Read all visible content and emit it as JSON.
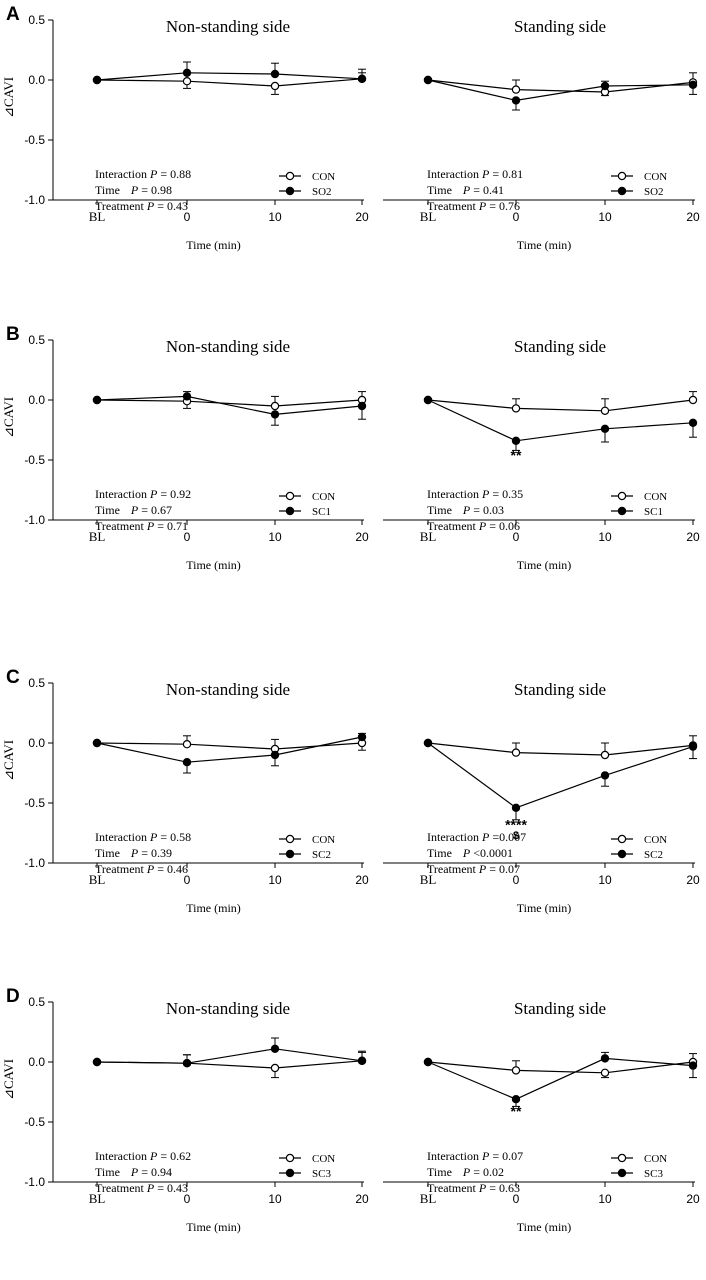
{
  "colors": {
    "ink": "#000000",
    "open_fill": "#ffffff"
  },
  "ylabel": "⊿CAVI",
  "chart_data": [
    {
      "panel_label": "A",
      "type": "line",
      "ylabel": "⊿CAVI",
      "ylim": [
        -1.0,
        0.5
      ],
      "yticks": [
        "0.5",
        "0.0",
        "-0.5",
        "-1.0"
      ],
      "ytick_values": [
        0.5,
        0.0,
        -0.5,
        -1.0
      ],
      "x_categories": [
        "BL",
        "0",
        "10",
        "20"
      ],
      "subplots": [
        {
          "title": "Non-standing side",
          "xlabel": "Time (min)",
          "stats": [
            {
              "label": "Interaction",
              "p": "P",
              "value": "= 0.88"
            },
            {
              "label": "Time",
              "p": "P",
              "value": "= 0.98"
            },
            {
              "label": "Treatment",
              "p": "P",
              "value": "= 0.43"
            }
          ],
          "annotations": [],
          "series": [
            {
              "name": "CON",
              "marker": "open",
              "values": [
                0.0,
                -0.01,
                -0.05,
                0.01
              ],
              "err": [
                0,
                0.06,
                0.07,
                0.05
              ]
            },
            {
              "name": "SO2",
              "marker": "filled",
              "values": [
                0.0,
                0.06,
                0.05,
                0.01
              ],
              "err": [
                0,
                0.09,
                0.09,
                0.08
              ]
            }
          ]
        },
        {
          "title": "Standing side",
          "xlabel": "Time (min)",
          "stats": [
            {
              "label": "Interaction",
              "p": "P",
              "value": "= 0.81"
            },
            {
              "label": "Time",
              "p": "P",
              "value": "= 0.41"
            },
            {
              "label": "Treatment",
              "p": "P",
              "value": "= 0.76"
            }
          ],
          "annotations": [],
          "series": [
            {
              "name": "CON",
              "marker": "open",
              "values": [
                0.0,
                -0.08,
                -0.1,
                -0.02
              ],
              "err": [
                0,
                0.08,
                0.03,
                0.08
              ]
            },
            {
              "name": "SO2",
              "marker": "filled",
              "values": [
                0.0,
                -0.17,
                -0.05,
                -0.04
              ],
              "err": [
                0,
                0.08,
                0.04,
                0.08
              ]
            }
          ]
        }
      ]
    },
    {
      "panel_label": "B",
      "type": "line",
      "ylabel": "⊿CAVI",
      "ylim": [
        -1.0,
        0.5
      ],
      "yticks": [
        "0.5",
        "0.0",
        "-0.5",
        "-1.0"
      ],
      "ytick_values": [
        0.5,
        0.0,
        -0.5,
        -1.0
      ],
      "x_categories": [
        "BL",
        "0",
        "10",
        "20"
      ],
      "subplots": [
        {
          "title": "Non-standing side",
          "xlabel": "Time (min)",
          "stats": [
            {
              "label": "Interaction",
              "p": "P",
              "value": "= 0.92"
            },
            {
              "label": "Time",
              "p": "P",
              "value": "= 0.67"
            },
            {
              "label": "Treatment",
              "p": "P",
              "value": "= 0.71"
            }
          ],
          "annotations": [],
          "series": [
            {
              "name": "CON",
              "marker": "open",
              "values": [
                0.0,
                -0.01,
                -0.05,
                0.0
              ],
              "err": [
                0,
                0.06,
                0.08,
                0.07
              ]
            },
            {
              "name": "SC1",
              "marker": "filled",
              "values": [
                0.0,
                0.03,
                -0.12,
                -0.05
              ],
              "err": [
                0,
                0.04,
                0.09,
                0.11
              ]
            }
          ]
        },
        {
          "title": "Standing side",
          "xlabel": "Time (min)",
          "stats": [
            {
              "label": "Interaction",
              "p": "P",
              "value": "= 0.35"
            },
            {
              "label": "Time",
              "p": "P",
              "value": "= 0.03"
            },
            {
              "label": "Treatment",
              "p": "P",
              "value": "= 0.06"
            }
          ],
          "annotations": [
            {
              "text": "**",
              "x": 1,
              "y": -0.5
            }
          ],
          "series": [
            {
              "name": "CON",
              "marker": "open",
              "values": [
                0.0,
                -0.07,
                -0.09,
                0.0
              ],
              "err": [
                0,
                0.08,
                0.1,
                0.07
              ]
            },
            {
              "name": "SC1",
              "marker": "filled",
              "values": [
                0.0,
                -0.34,
                -0.24,
                -0.19
              ],
              "err": [
                0,
                0.08,
                0.11,
                0.12
              ]
            }
          ]
        }
      ]
    },
    {
      "panel_label": "C",
      "type": "line",
      "ylabel": "⊿CAVI",
      "ylim": [
        -1.0,
        0.5
      ],
      "yticks": [
        "0.5",
        "0.0",
        "-0.5",
        "-1.0"
      ],
      "ytick_values": [
        0.5,
        0.0,
        -0.5,
        -1.0
      ],
      "x_categories": [
        "BL",
        "0",
        "10",
        "20"
      ],
      "subplots": [
        {
          "title": "Non-standing side",
          "xlabel": "Time (min)",
          "stats": [
            {
              "label": "Interaction",
              "p": "P",
              "value": "= 0.58"
            },
            {
              "label": "Time",
              "p": "P",
              "value": "= 0.39"
            },
            {
              "label": "Treatment",
              "p": "P",
              "value": "= 0.46"
            }
          ],
          "annotations": [],
          "series": [
            {
              "name": "CON",
              "marker": "open",
              "values": [
                0.0,
                -0.01,
                -0.05,
                0.0
              ],
              "err": [
                0,
                0.07,
                0.08,
                0.06
              ]
            },
            {
              "name": "SC2",
              "marker": "filled",
              "values": [
                0.0,
                -0.16,
                -0.1,
                0.05
              ],
              "err": [
                0,
                0.09,
                0.09,
                0.03
              ]
            }
          ]
        },
        {
          "title": "Standing side",
          "xlabel": "Time (min)",
          "stats": [
            {
              "label": "Interaction",
              "p": "P",
              "value": "=0.007"
            },
            {
              "label": "Time",
              "p": "P",
              "value": "<0.0001"
            },
            {
              "label": "Treatment",
              "p": "P",
              "value": "= 0.07"
            }
          ],
          "annotations": [
            {
              "text": "****",
              "x": 1,
              "y": -0.72
            },
            {
              "text": "$",
              "x": 1,
              "y": -0.8
            }
          ],
          "series": [
            {
              "name": "CON",
              "marker": "open",
              "values": [
                0.0,
                -0.08,
                -0.1,
                -0.02
              ],
              "err": [
                0,
                0.08,
                0.1,
                0.08
              ]
            },
            {
              "name": "SC2",
              "marker": "filled",
              "values": [
                0.0,
                -0.54,
                -0.27,
                -0.03
              ],
              "err": [
                0,
                0.1,
                0.09,
                0.1
              ]
            }
          ]
        }
      ]
    },
    {
      "panel_label": "D",
      "type": "line",
      "ylabel": "⊿CAVI",
      "ylim": [
        -1.0,
        0.5
      ],
      "yticks": [
        "0.5",
        "0.0",
        "-0.5",
        "-1.0"
      ],
      "ytick_values": [
        0.5,
        0.0,
        -0.5,
        -1.0
      ],
      "x_categories": [
        "BL",
        "0",
        "10",
        "20"
      ],
      "subplots": [
        {
          "title": "Non-standing side",
          "xlabel": "Time (min)",
          "stats": [
            {
              "label": "Interaction",
              "p": "P",
              "value": "= 0.62"
            },
            {
              "label": "Time",
              "p": "P",
              "value": "= 0.94"
            },
            {
              "label": "Treatment",
              "p": "P",
              "value": "= 0.43"
            }
          ],
          "annotations": [],
          "series": [
            {
              "name": "CON",
              "marker": "open",
              "values": [
                0.0,
                -0.01,
                -0.05,
                0.01
              ],
              "err": [
                0,
                0.07,
                0.08,
                0.07
              ]
            },
            {
              "name": "SC3",
              "marker": "filled",
              "values": [
                0.0,
                -0.01,
                0.11,
                0.01
              ],
              "err": [
                0,
                0.07,
                0.09,
                0.08
              ]
            }
          ]
        },
        {
          "title": "Standing side",
          "xlabel": "Time (min)",
          "stats": [
            {
              "label": "Interaction",
              "p": "P",
              "value": "= 0.07"
            },
            {
              "label": "Time",
              "p": "P",
              "value": "= 0.02"
            },
            {
              "label": "Treatment",
              "p": "P",
              "value": "= 0.63"
            }
          ],
          "annotations": [
            {
              "text": "**",
              "x": 1,
              "y": -0.45
            }
          ],
          "series": [
            {
              "name": "CON",
              "marker": "open",
              "values": [
                0.0,
                -0.07,
                -0.09,
                0.0
              ],
              "err": [
                0,
                0.08,
                0.04,
                0.07
              ]
            },
            {
              "name": "SC3",
              "marker": "filled",
              "values": [
                0.0,
                -0.31,
                0.03,
                -0.03
              ],
              "err": [
                0,
                0.06,
                0.05,
                0.1
              ]
            }
          ]
        }
      ]
    }
  ]
}
